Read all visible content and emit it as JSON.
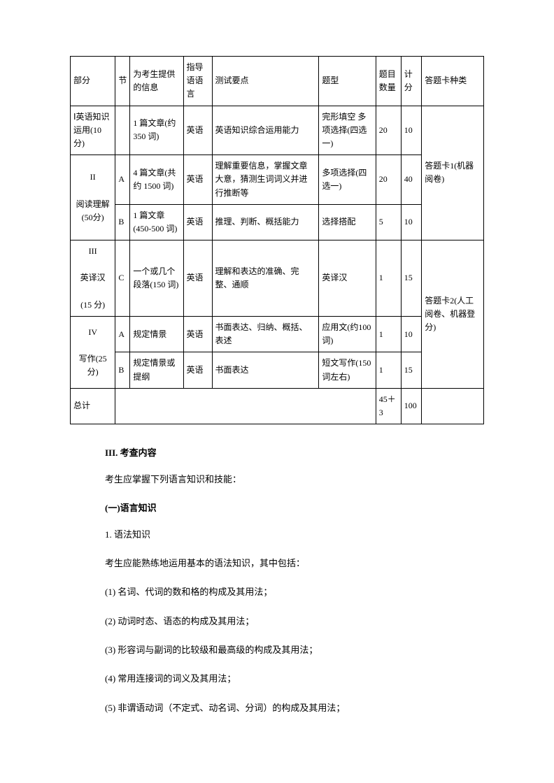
{
  "table": {
    "headers": [
      "部分",
      "节",
      "为考生提供的信息",
      "指导语语言",
      "测试要点",
      "题型",
      "题目数量",
      "计分",
      "答题卡种类"
    ],
    "rows": [
      {
        "part": "Ⅰ英语知识运用(10 分)",
        "section": "",
        "info": "1 篇文章(约 350 词)",
        "lang": "英语",
        "focus": "英语知识综合运用能力",
        "qtype": "完形填空 多项选择(四选一)",
        "count": "20",
        "score": "10",
        "card": "答题卡1(机器阅卷)"
      },
      {
        "part": "II",
        "part2": "阅读理解(50分)",
        "sectionA": "A",
        "infoA": "4 篇文章(共约 1500 词)",
        "langA": "英语",
        "focusA": "理解重要信息，掌握文章大意，猜测生词词义并进行推断等",
        "qtypeA": "多项选择(四选一)",
        "countA": "20",
        "scoreA": "40",
        "sectionB": "B",
        "infoB": "1 篇文章(450-500 词)",
        "langB": "英语",
        "focusB": "推理、判断、概括能力",
        "qtypeB": "选择搭配",
        "countB": "5",
        "scoreB": "10"
      },
      {
        "part": "III",
        "part2": "英译汉",
        "part3": "(15 分)",
        "section": "C",
        "info": "一个或几个段落(150 词)",
        "lang": "英语",
        "focus": "理解和表达的准确、完整、通顺",
        "qtype": "英译汉",
        "count": "1",
        "score": "15",
        "card": "答题卡2(人工阅卷、机器登分)"
      },
      {
        "part": "IV",
        "part2": "写作(25 分)",
        "sectionA": "A",
        "infoA": "规定情景",
        "langA": "英语",
        "focusA": "书面表达、归纳、概括、表述",
        "qtypeA": "应用文(约100 词)",
        "countA": "1",
        "scoreA": "10",
        "sectionB": "B",
        "infoB": "规定情景或提纲",
        "langB": "英语",
        "focusB": "书面表达",
        "qtypeB": "短文写作(150 词左右)",
        "countB": "1",
        "scoreB": "15"
      }
    ],
    "total": {
      "label": "总计",
      "count": "45＋3",
      "score": "100"
    }
  },
  "content": {
    "heading1": "III.  考查内容",
    "intro": "考生应掌握下列语言知识和技能：",
    "heading2": "(一)语言知识",
    "item1_title": "1. 语法知识",
    "item1_intro": "考生应能熟练地运用基本的语法知识，其中包括：",
    "sub1": "(1) 名词、代词的数和格的构成及其用法；",
    "sub2": "(2) 动词时态、语态的构成及其用法；",
    "sub3": "(3) 形容词与副词的比较级和最高级的构成及其用法；",
    "sub4": "(4) 常用连接词的词义及其用法；",
    "sub5": "(5) 非谓语动词（不定式、动名词、分词）的构成及其用法；"
  }
}
